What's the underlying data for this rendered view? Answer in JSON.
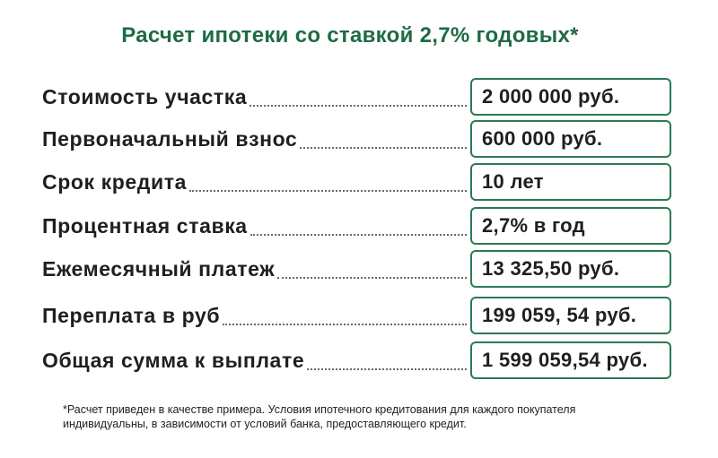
{
  "title": "Расчет ипотеки со ставкой 2,7% годовых*",
  "rows": [
    {
      "label": "Стоимость участка",
      "value": "2 000 000 руб."
    },
    {
      "label": "Первоначальный взнос",
      "value": "600 000 руб."
    },
    {
      "label": "Срок кредита",
      "value": "10 лет"
    },
    {
      "label": "Процентная ставка",
      "value": "2,7% в год"
    },
    {
      "label": "Ежемесячный платеж",
      "value": "13 325,50 руб."
    },
    {
      "label": "Переплата в руб",
      "value": "199 059, 54 руб."
    },
    {
      "label": "Общая сумма к выплате",
      "value": "1 599 059,54 руб."
    }
  ],
  "footnote": {
    "line1": "*Расчет приведен в качестве примера. Условия ипотечного кредитования для каждого покупателя",
    "line2": "индивидуальны, в зависимости от условий банка, предоставляющего кредит."
  },
  "colors": {
    "accent": "#1e6b45",
    "box_border": "#2b7a52",
    "text": "#1f1f1f"
  }
}
